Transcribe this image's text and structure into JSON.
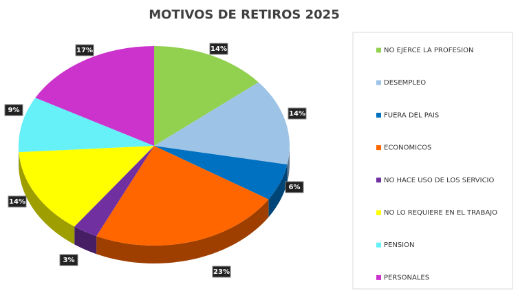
{
  "chart_data": {
    "type": "pie",
    "title": "MOTIVOS DE RETIROS 2025",
    "categories": [
      "NO EJERCE LA PROFESION",
      "DESEMPLEO",
      "FUERA DEL PAIS",
      "ECONOMICOS",
      "NO HACE USO DE LOS SERVICIO",
      "NO LO REQUIERE EN EL TRABAJO",
      "PENSION",
      "PERSONALES"
    ],
    "values": [
      14,
      14,
      6,
      23,
      3,
      14,
      9,
      17
    ],
    "value_labels": [
      "14%",
      "14%",
      "6%",
      "23%",
      "3%",
      "14%",
      "9%",
      "17%"
    ],
    "colors": [
      "#92d050",
      "#9dc3e6",
      "#0070c0",
      "#ff6600",
      "#7030a0",
      "#ffff00",
      "#66f0f8",
      "#cc33cc"
    ],
    "legend": "right"
  }
}
